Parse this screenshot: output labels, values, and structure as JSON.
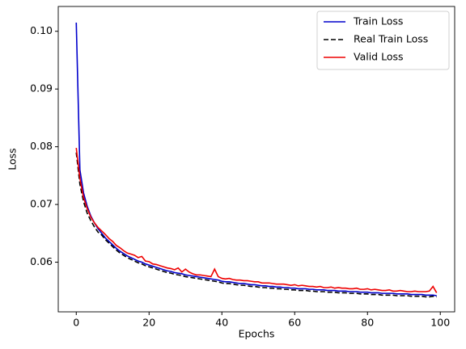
{
  "chart_data": {
    "type": "line",
    "xlabel": "Epochs",
    "ylabel": "Loss",
    "x": [
      0,
      1,
      2,
      3,
      4,
      5,
      6,
      7,
      8,
      9,
      10,
      11,
      12,
      13,
      14,
      15,
      16,
      17,
      18,
      19,
      20,
      21,
      22,
      23,
      24,
      25,
      26,
      27,
      28,
      29,
      30,
      31,
      32,
      33,
      34,
      35,
      36,
      37,
      38,
      39,
      40,
      41,
      42,
      43,
      44,
      45,
      46,
      47,
      48,
      49,
      50,
      51,
      52,
      53,
      54,
      55,
      56,
      57,
      58,
      59,
      60,
      61,
      62,
      63,
      64,
      65,
      66,
      67,
      68,
      69,
      70,
      71,
      72,
      73,
      74,
      75,
      76,
      77,
      78,
      79,
      80,
      81,
      82,
      83,
      84,
      85,
      86,
      87,
      88,
      89,
      90,
      91,
      92,
      93,
      94,
      95,
      96,
      97,
      98,
      99
    ],
    "series": [
      {
        "name": "Train Loss",
        "color": "#0000cc",
        "linestyle": "solid",
        "values": [
          0.1015,
          0.076,
          0.072,
          0.0697,
          0.068,
          0.0668,
          0.0658,
          0.065,
          0.0642,
          0.0636,
          0.063,
          0.0624,
          0.0619,
          0.0615,
          0.0611,
          0.0608,
          0.0605,
          0.0602,
          0.06,
          0.0597,
          0.0595,
          0.0593,
          0.0591,
          0.0589,
          0.0587,
          0.0585,
          0.0584,
          0.0582,
          0.0581,
          0.058,
          0.0578,
          0.0577,
          0.0576,
          0.0575,
          0.0574,
          0.0573,
          0.0572,
          0.0571,
          0.057,
          0.0569,
          0.0567,
          0.0566,
          0.0566,
          0.0565,
          0.0564,
          0.0563,
          0.0563,
          0.0562,
          0.0561,
          0.0561,
          0.056,
          0.0559,
          0.0559,
          0.0558,
          0.0558,
          0.0557,
          0.0557,
          0.0556,
          0.0556,
          0.0555,
          0.0555,
          0.0554,
          0.0554,
          0.0554,
          0.0553,
          0.0553,
          0.0552,
          0.0552,
          0.0552,
          0.0551,
          0.0551,
          0.0551,
          0.055,
          0.055,
          0.055,
          0.0549,
          0.0549,
          0.0549,
          0.0548,
          0.0548,
          0.0548,
          0.0547,
          0.0547,
          0.0547,
          0.0546,
          0.0546,
          0.0546,
          0.0546,
          0.0545,
          0.0545,
          0.0545,
          0.0545,
          0.0544,
          0.0544,
          0.0544,
          0.0544,
          0.0543,
          0.0543,
          0.0543,
          0.0542
        ]
      },
      {
        "name": "Real Train Loss",
        "color": "#000000",
        "linestyle": "dashed",
        "values": [
          0.079,
          0.0735,
          0.0705,
          0.0685,
          0.0672,
          0.0661,
          0.0652,
          0.0647,
          0.0639,
          0.0633,
          0.0627,
          0.0621,
          0.0616,
          0.0612,
          0.0608,
          0.0605,
          0.0602,
          0.0599,
          0.0597,
          0.0594,
          0.0592,
          0.059,
          0.0588,
          0.0586,
          0.0584,
          0.0582,
          0.0581,
          0.0579,
          0.0578,
          0.0577,
          0.0575,
          0.0574,
          0.0573,
          0.0572,
          0.0571,
          0.057,
          0.0569,
          0.0568,
          0.0567,
          0.0566,
          0.0564,
          0.0563,
          0.0563,
          0.0562,
          0.0561,
          0.056,
          0.056,
          0.0559,
          0.0558,
          0.0558,
          0.0557,
          0.0556,
          0.0556,
          0.0555,
          0.0555,
          0.0554,
          0.0554,
          0.0553,
          0.0553,
          0.0552,
          0.0552,
          0.0551,
          0.0551,
          0.0551,
          0.055,
          0.055,
          0.0549,
          0.0549,
          0.0549,
          0.0548,
          0.0548,
          0.0548,
          0.0547,
          0.0547,
          0.0547,
          0.0546,
          0.0546,
          0.0546,
          0.0545,
          0.0545,
          0.0545,
          0.0544,
          0.0544,
          0.0544,
          0.0543,
          0.0543,
          0.0543,
          0.0543,
          0.0542,
          0.0542,
          0.0542,
          0.0542,
          0.0541,
          0.0541,
          0.0541,
          0.0541,
          0.054,
          0.054,
          0.0541,
          0.054
        ]
      },
      {
        "name": "Valid Loss",
        "color": "#ee0000",
        "linestyle": "solid",
        "values": [
          0.0798,
          0.0745,
          0.0712,
          0.0693,
          0.0678,
          0.0668,
          0.066,
          0.0654,
          0.0648,
          0.0641,
          0.0636,
          0.0629,
          0.0625,
          0.062,
          0.0616,
          0.0614,
          0.0612,
          0.0608,
          0.061,
          0.0602,
          0.0601,
          0.0597,
          0.0596,
          0.0594,
          0.0592,
          0.059,
          0.0589,
          0.0587,
          0.059,
          0.0583,
          0.0588,
          0.0583,
          0.058,
          0.0578,
          0.0578,
          0.0577,
          0.0576,
          0.0575,
          0.0588,
          0.0575,
          0.0572,
          0.0571,
          0.0572,
          0.057,
          0.0569,
          0.0569,
          0.0568,
          0.0568,
          0.0567,
          0.0566,
          0.0566,
          0.0564,
          0.0564,
          0.0564,
          0.0563,
          0.0562,
          0.0562,
          0.0562,
          0.0561,
          0.056,
          0.0561,
          0.0559,
          0.056,
          0.0559,
          0.0558,
          0.0558,
          0.0557,
          0.0558,
          0.0556,
          0.0556,
          0.0557,
          0.0555,
          0.0556,
          0.0555,
          0.0555,
          0.0554,
          0.0554,
          0.0555,
          0.0553,
          0.0553,
          0.0554,
          0.0552,
          0.0553,
          0.0552,
          0.0551,
          0.0551,
          0.0552,
          0.055,
          0.055,
          0.0551,
          0.055,
          0.0549,
          0.0549,
          0.055,
          0.0549,
          0.0549,
          0.0549,
          0.055,
          0.0558,
          0.0547
        ]
      }
    ],
    "xlim": [
      -4.95,
      103.95
    ],
    "xticks": [
      0,
      20,
      40,
      60,
      80,
      100
    ],
    "ylim": [
      0.0514,
      0.1043
    ],
    "yticks": [
      0.06,
      0.07,
      0.08,
      0.09,
      {
        "value": 0.1,
        "label": "0.10"
      }
    ],
    "grid": false,
    "legend": "upper right"
  }
}
